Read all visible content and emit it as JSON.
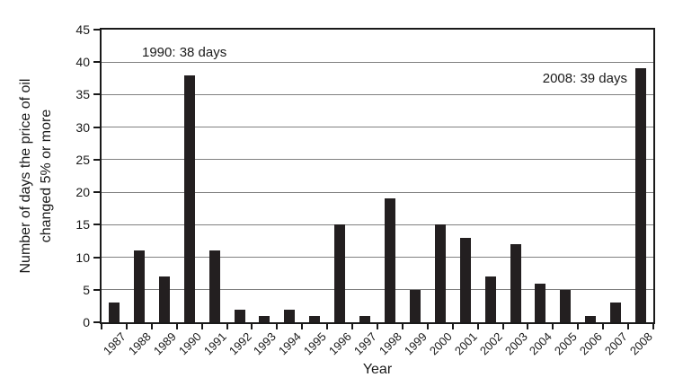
{
  "figure": {
    "background": "#ffffff"
  },
  "chart_data": {
    "type": "bar",
    "title": "",
    "categories": [
      "1987",
      "1988",
      "1989",
      "1990",
      "1991",
      "1992",
      "1993",
      "1994",
      "1995",
      "1996",
      "1997",
      "1998",
      "1999",
      "2000",
      "2001",
      "2002",
      "2003",
      "2004",
      "2005",
      "2006",
      "2007",
      "2008"
    ],
    "values": [
      3,
      11,
      7,
      38,
      11,
      2,
      1,
      2,
      1,
      15,
      1,
      19,
      5,
      15,
      13,
      7,
      12,
      6,
      5,
      1,
      3,
      39
    ],
    "xlabel": "Year",
    "ylabel": "Number of days the price of oil changed 5% or more",
    "ylabel_lines": [
      "Number of days the price of oil",
      "changed 5% or more"
    ],
    "ylim": [
      0,
      45
    ],
    "yticks": [
      45,
      40,
      35,
      30,
      25,
      20,
      15,
      10,
      5,
      0
    ],
    "grid": true,
    "legend": false,
    "bar_color": "#231f20",
    "grid_color": "#808080",
    "axis_color": "#1a1a1a",
    "annotations": [
      {
        "text": "1990: 38 days"
      },
      {
        "text": "2008: 39 days"
      }
    ]
  }
}
